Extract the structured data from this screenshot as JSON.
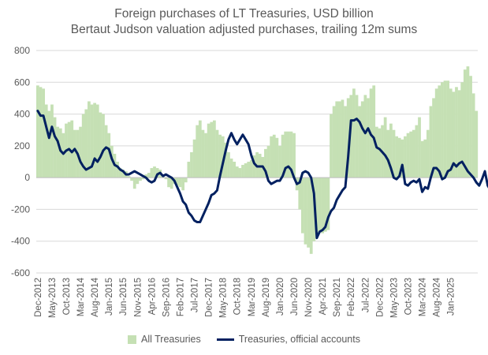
{
  "chart_data": {
    "type": "bar+line",
    "title": "Foreign purchases of LT Treasuries, USD billion",
    "subtitle": "Bertaut Judson valuation adjusted purchases, trailing 12m sums",
    "ylim": [
      -600,
      800
    ],
    "yticks": [
      "800",
      "600",
      "400",
      "200",
      "0",
      "-200",
      "-400",
      "-600"
    ],
    "ytick_values": [
      800,
      600,
      400,
      200,
      0,
      -200,
      -400,
      -600
    ],
    "grid": true,
    "legend_position": "bottom",
    "x_start": "2012-12",
    "x_end": "2025-01",
    "x_tick_labels": [
      "Dec-2012",
      "May-2013",
      "Oct-2013",
      "Mar-2014",
      "Aug-2014",
      "Jan-2015",
      "Jun-2015",
      "Nov-2015",
      "Apr-2016",
      "Sep-2016",
      "Feb-2017",
      "Jul-2017",
      "Dec-2017",
      "May-2018",
      "Oct-2018",
      "Mar-2019",
      "Aug-2019",
      "Jan-2020",
      "Jun-2020",
      "Nov-2020",
      "Apr-2021",
      "Sep-2021",
      "Feb-2022",
      "Jul-2022",
      "Dec-2022",
      "May-2023",
      "Oct-2023",
      "Mar-2024",
      "Aug-2024",
      "Jan-2025"
    ],
    "series": [
      {
        "name": "All Treasuries",
        "kind": "bar",
        "color": "#c5e0b4",
        "values": [
          580,
          570,
          560,
          460,
          420,
          460,
          380,
          320,
          310,
          280,
          340,
          350,
          360,
          300,
          300,
          320,
          400,
          430,
          480,
          460,
          470,
          460,
          410,
          400,
          330,
          280,
          200,
          150,
          100,
          60,
          50,
          40,
          10,
          -20,
          -70,
          -40,
          -20,
          -10,
          20,
          30,
          60,
          70,
          60,
          50,
          20,
          -10,
          -60,
          -70,
          -40,
          -50,
          -60,
          -80,
          -30,
          100,
          160,
          240,
          330,
          360,
          300,
          280,
          340,
          350,
          360,
          300,
          270,
          260,
          220,
          160,
          120,
          100,
          70,
          60,
          80,
          90,
          100,
          110,
          140,
          160,
          150,
          130,
          180,
          200,
          260,
          270,
          250,
          200,
          270,
          290,
          290,
          290,
          280,
          -80,
          -200,
          -350,
          -420,
          -440,
          -480,
          -400,
          -350,
          -340,
          -350,
          -340,
          -330,
          400,
          450,
          480,
          480,
          490,
          450,
          500,
          520,
          560,
          520,
          450,
          480,
          520,
          500,
          560,
          580,
          320,
          310,
          330,
          380,
          300,
          340,
          300,
          260,
          250,
          240,
          260,
          280,
          290,
          300,
          330,
          380,
          230,
          240,
          300,
          450,
          500,
          560,
          580,
          600,
          610,
          610,
          560,
          540,
          570,
          550,
          600,
          680,
          700,
          640,
          530,
          420
        ]
      },
      {
        "name": "Treasuries, official accounts",
        "kind": "line",
        "color": "#002060",
        "values": [
          420,
          390,
          390,
          320,
          250,
          320,
          260,
          230,
          170,
          150,
          170,
          180,
          160,
          180,
          150,
          100,
          70,
          50,
          60,
          70,
          120,
          100,
          130,
          170,
          190,
          180,
          120,
          80,
          70,
          50,
          40,
          20,
          20,
          30,
          40,
          30,
          20,
          10,
          0,
          -20,
          -30,
          -20,
          20,
          30,
          10,
          20,
          10,
          0,
          -20,
          -60,
          -100,
          -150,
          -170,
          -220,
          -240,
          -270,
          -280,
          -280,
          -240,
          -200,
          -160,
          -110,
          -100,
          -80,
          10,
          90,
          170,
          240,
          280,
          240,
          210,
          240,
          270,
          240,
          210,
          140,
          90,
          70,
          70,
          70,
          40,
          -20,
          -40,
          -30,
          -20,
          -20,
          10,
          60,
          70,
          50,
          0,
          -40,
          -30,
          30,
          40,
          30,
          0,
          -100,
          -380,
          -340,
          -330,
          -310,
          -250,
          -210,
          -190,
          -140,
          -110,
          -80,
          -60,
          130,
          360,
          360,
          370,
          350,
          310,
          280,
          310,
          270,
          250,
          190,
          180,
          160,
          140,
          110,
          60,
          0,
          -10,
          10,
          80,
          -40,
          -50,
          -30,
          -20,
          -30,
          -10,
          -90,
          -60,
          -70,
          0,
          60,
          60,
          40,
          -10,
          0,
          40,
          50,
          90,
          70,
          90,
          100,
          70,
          40,
          20,
          0,
          -30,
          -50,
          -10,
          40,
          -50,
          -80,
          -90
        ]
      }
    ]
  },
  "legend": {
    "items": [
      {
        "label": "All Treasuries",
        "color": "#c5e0b4"
      },
      {
        "label": "Treasuries, official accounts",
        "color": "#002060"
      }
    ]
  }
}
